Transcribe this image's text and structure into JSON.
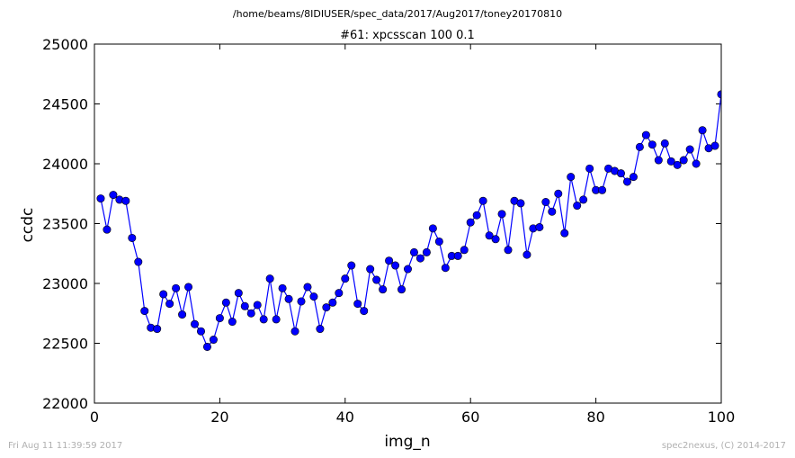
{
  "header": {
    "path": "/home/beams/8IDIUSER/spec_data/2017/Aug2017/toney20170810"
  },
  "footer": {
    "timestamp": "Fri Aug 11 11:39:59 2017",
    "credit": "spec2nexus, (C) 2014-2017"
  },
  "colors": {
    "series": "#0000ff",
    "axes": "#000000",
    "footer_text": "#b0b0b0",
    "background": "#ffffff"
  },
  "chart_data": {
    "type": "line",
    "title": "#61: xpcsscan 100 0.1",
    "xlabel": "img_n",
    "ylabel": "ccdc",
    "xlim": [
      0,
      100
    ],
    "ylim": [
      22000,
      25000
    ],
    "xticks": [
      0,
      20,
      40,
      60,
      80,
      100
    ],
    "yticks": [
      22000,
      22500,
      23000,
      23500,
      24000,
      24500,
      25000
    ],
    "grid": false,
    "legend": "none",
    "marker": "circle",
    "series": [
      {
        "x": [
          1,
          2,
          3,
          4,
          5,
          6,
          7,
          8,
          9,
          10,
          11,
          12,
          13,
          14,
          15,
          16,
          17,
          18,
          19,
          20,
          21,
          22,
          23,
          24,
          25,
          26,
          27,
          28,
          29,
          30,
          31,
          32,
          33,
          34,
          35,
          36,
          37,
          38,
          39,
          40,
          41,
          42,
          43,
          44,
          45,
          46,
          47,
          48,
          49,
          50,
          51,
          52,
          53,
          54,
          55,
          56,
          57,
          58,
          59,
          60,
          61,
          62,
          63,
          64,
          65,
          66,
          67,
          68,
          69,
          70,
          71,
          72,
          73,
          74,
          75,
          76,
          77,
          78,
          79,
          80,
          81,
          82,
          83,
          84,
          85,
          86,
          87,
          88,
          89,
          90,
          91,
          92,
          93,
          94,
          95,
          96,
          97,
          98,
          99,
          100
        ],
        "values": [
          23710,
          23450,
          23740,
          23700,
          23690,
          23380,
          23180,
          22770,
          22630,
          22620,
          22910,
          22830,
          22960,
          22740,
          22970,
          22660,
          22600,
          22470,
          22530,
          22710,
          22840,
          22680,
          22920,
          22810,
          22750,
          22820,
          22700,
          23040,
          22700,
          22960,
          22870,
          22600,
          22850,
          22970,
          22890,
          22620,
          22800,
          22840,
          22920,
          23040,
          23150,
          22830,
          22770,
          23120,
          23030,
          22950,
          23190,
          23150,
          22950,
          23120,
          23260,
          23210,
          23260,
          23460,
          23350,
          23130,
          23230,
          23230,
          23280,
          23510,
          23570,
          23690,
          23400,
          23370,
          23580,
          23280,
          23690,
          23670,
          23240,
          23460,
          23470,
          23680,
          23600,
          23750,
          23420,
          23890,
          23650,
          23700,
          23960,
          23780,
          23780,
          23960,
          23940,
          23920,
          23850,
          23890,
          24140,
          24240,
          24160,
          24030,
          24170,
          24020,
          23990,
          24030,
          24120,
          24000,
          24280,
          24130,
          24150,
          24580
        ]
      }
    ]
  }
}
